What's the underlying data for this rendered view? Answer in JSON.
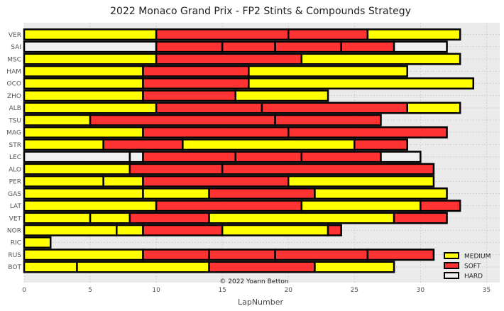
{
  "chart_data": {
    "type": "bar",
    "orientation": "horizontal-stacked",
    "title": "2022 Monaco Grand Prix - FP2 Stints & Compounds Strategy",
    "xlabel": "LapNumber",
    "ylabel": "",
    "xlim": [
      0,
      36
    ],
    "xticks": [
      0,
      5,
      10,
      15,
      20,
      25,
      30,
      35
    ],
    "grid": true,
    "legend_position": "bottom-right",
    "credit": "© 2022 Yoann Betton",
    "compounds": [
      {
        "name": "MEDIUM",
        "color": "#ffff00"
      },
      {
        "name": "SOFT",
        "color": "#ff3333"
      },
      {
        "name": "HARD",
        "color": "#f0f0f0"
      }
    ],
    "drivers": [
      {
        "name": "VER",
        "stints": [
          [
            "MEDIUM",
            0,
            10
          ],
          [
            "SOFT",
            10,
            20
          ],
          [
            "SOFT",
            20,
            26
          ],
          [
            "MEDIUM",
            26,
            33
          ]
        ]
      },
      {
        "name": "SAI",
        "stints": [
          [
            "HARD",
            0,
            10
          ],
          [
            "SOFT",
            10,
            15
          ],
          [
            "SOFT",
            15,
            19
          ],
          [
            "SOFT",
            19,
            24
          ],
          [
            "SOFT",
            24,
            28
          ],
          [
            "HARD",
            28,
            32
          ]
        ]
      },
      {
        "name": "MSC",
        "stints": [
          [
            "MEDIUM",
            0,
            10
          ],
          [
            "SOFT",
            10,
            21
          ],
          [
            "MEDIUM",
            21,
            33
          ]
        ]
      },
      {
        "name": "HAM",
        "stints": [
          [
            "MEDIUM",
            0,
            9
          ],
          [
            "SOFT",
            9,
            17
          ],
          [
            "MEDIUM",
            17,
            29
          ]
        ]
      },
      {
        "name": "OCO",
        "stints": [
          [
            "MEDIUM",
            0,
            9
          ],
          [
            "SOFT",
            9,
            17
          ],
          [
            "MEDIUM",
            17,
            34
          ]
        ]
      },
      {
        "name": "ZHO",
        "stints": [
          [
            "MEDIUM",
            0,
            9
          ],
          [
            "SOFT",
            9,
            16
          ],
          [
            "MEDIUM",
            16,
            23
          ]
        ]
      },
      {
        "name": "ALB",
        "stints": [
          [
            "MEDIUM",
            0,
            10
          ],
          [
            "SOFT",
            10,
            18
          ],
          [
            "SOFT",
            18,
            29
          ],
          [
            "MEDIUM",
            29,
            33
          ]
        ]
      },
      {
        "name": "TSU",
        "stints": [
          [
            "MEDIUM",
            0,
            5
          ],
          [
            "SOFT",
            5,
            19
          ],
          [
            "SOFT",
            19,
            27
          ]
        ]
      },
      {
        "name": "MAG",
        "stints": [
          [
            "MEDIUM",
            0,
            9
          ],
          [
            "SOFT",
            9,
            20
          ],
          [
            "SOFT",
            20,
            32
          ]
        ]
      },
      {
        "name": "STR",
        "stints": [
          [
            "MEDIUM",
            0,
            6
          ],
          [
            "SOFT",
            6,
            12
          ],
          [
            "MEDIUM",
            12,
            25
          ],
          [
            "SOFT",
            25,
            29
          ]
        ]
      },
      {
        "name": "LEC",
        "stints": [
          [
            "HARD",
            0,
            8
          ],
          [
            "HARD",
            8,
            9
          ],
          [
            "SOFT",
            9,
            16
          ],
          [
            "SOFT",
            16,
            21
          ],
          [
            "SOFT",
            21,
            27
          ],
          [
            "HARD",
            27,
            30
          ]
        ]
      },
      {
        "name": "ALO",
        "stints": [
          [
            "MEDIUM",
            0,
            8
          ],
          [
            "SOFT",
            8,
            15
          ],
          [
            "SOFT",
            15,
            31
          ]
        ]
      },
      {
        "name": "PER",
        "stints": [
          [
            "MEDIUM",
            0,
            6
          ],
          [
            "MEDIUM",
            6,
            9
          ],
          [
            "SOFT",
            9,
            20
          ],
          [
            "MEDIUM",
            20,
            31
          ]
        ]
      },
      {
        "name": "GAS",
        "stints": [
          [
            "MEDIUM",
            0,
            9
          ],
          [
            "MEDIUM",
            9,
            14
          ],
          [
            "SOFT",
            14,
            22
          ],
          [
            "MEDIUM",
            22,
            32
          ]
        ]
      },
      {
        "name": "LAT",
        "stints": [
          [
            "MEDIUM",
            0,
            10
          ],
          [
            "SOFT",
            10,
            21
          ],
          [
            "MEDIUM",
            21,
            30
          ],
          [
            "SOFT",
            30,
            33
          ]
        ]
      },
      {
        "name": "VET",
        "stints": [
          [
            "MEDIUM",
            0,
            5
          ],
          [
            "MEDIUM",
            5,
            8
          ],
          [
            "SOFT",
            8,
            14
          ],
          [
            "MEDIUM",
            14,
            28
          ],
          [
            "SOFT",
            28,
            32
          ]
        ]
      },
      {
        "name": "NOR",
        "stints": [
          [
            "MEDIUM",
            0,
            7
          ],
          [
            "MEDIUM",
            7,
            9
          ],
          [
            "SOFT",
            9,
            15
          ],
          [
            "MEDIUM",
            15,
            23
          ],
          [
            "SOFT",
            23,
            24
          ]
        ]
      },
      {
        "name": "RIC",
        "stints": [
          [
            "MEDIUM",
            0,
            2
          ]
        ]
      },
      {
        "name": "RUS",
        "stints": [
          [
            "MEDIUM",
            0,
            9
          ],
          [
            "SOFT",
            9,
            14
          ],
          [
            "SOFT",
            14,
            19
          ],
          [
            "SOFT",
            19,
            26
          ],
          [
            "SOFT",
            26,
            31
          ]
        ]
      },
      {
        "name": "BOT",
        "stints": [
          [
            "MEDIUM",
            0,
            4
          ],
          [
            "MEDIUM",
            4,
            14
          ],
          [
            "SOFT",
            14,
            22
          ],
          [
            "MEDIUM",
            22,
            28
          ]
        ]
      }
    ]
  }
}
